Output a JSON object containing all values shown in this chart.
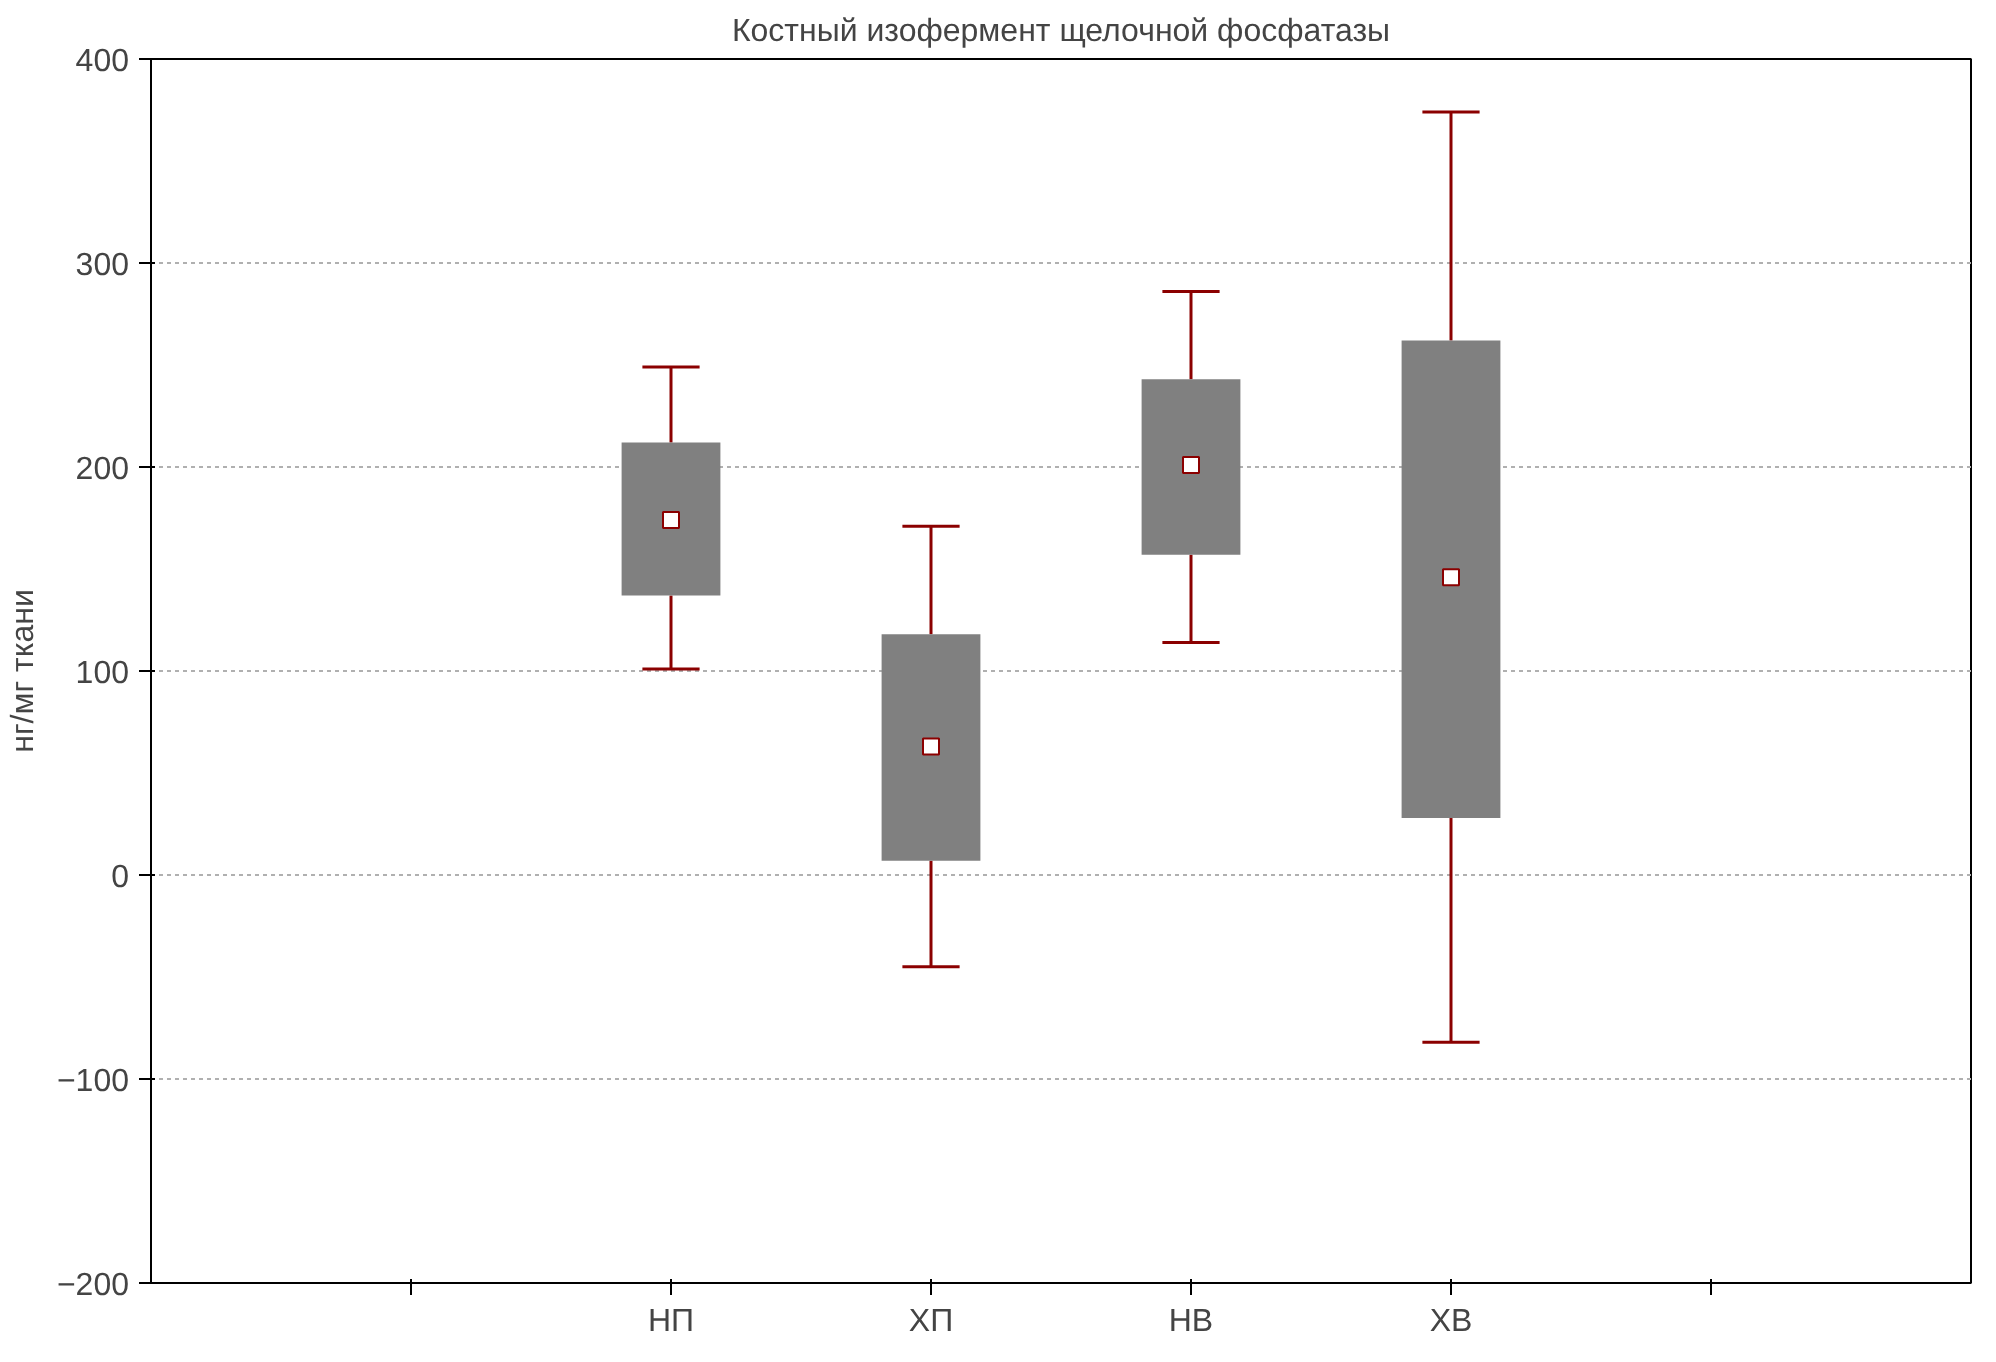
{
  "chart_data": {
    "type": "box",
    "title": "Костный изофермент щелочной фосфатазы",
    "ylabel": "нг/мг ткани",
    "categories": [
      null,
      "НП",
      "ХП",
      "НВ",
      "ХВ",
      null
    ],
    "boxes": [
      null,
      {
        "low": 101,
        "q1": 137,
        "median": 174,
        "q3": 212,
        "high": 249
      },
      {
        "low": -45,
        "q1": 7,
        "median": 63,
        "q3": 118,
        "high": 171
      },
      {
        "low": 114,
        "q1": 157,
        "median": 201,
        "q3": 243,
        "high": 286
      },
      {
        "low": -82,
        "q1": 28,
        "median": 146,
        "q3": 262,
        "high": 374
      },
      null
    ],
    "color": "#808080",
    "ylim": [
      -200,
      400
    ],
    "yticks": [
      -200,
      -100,
      0,
      100,
      200,
      300,
      400
    ],
    "grid": "y",
    "marker": "square"
  }
}
